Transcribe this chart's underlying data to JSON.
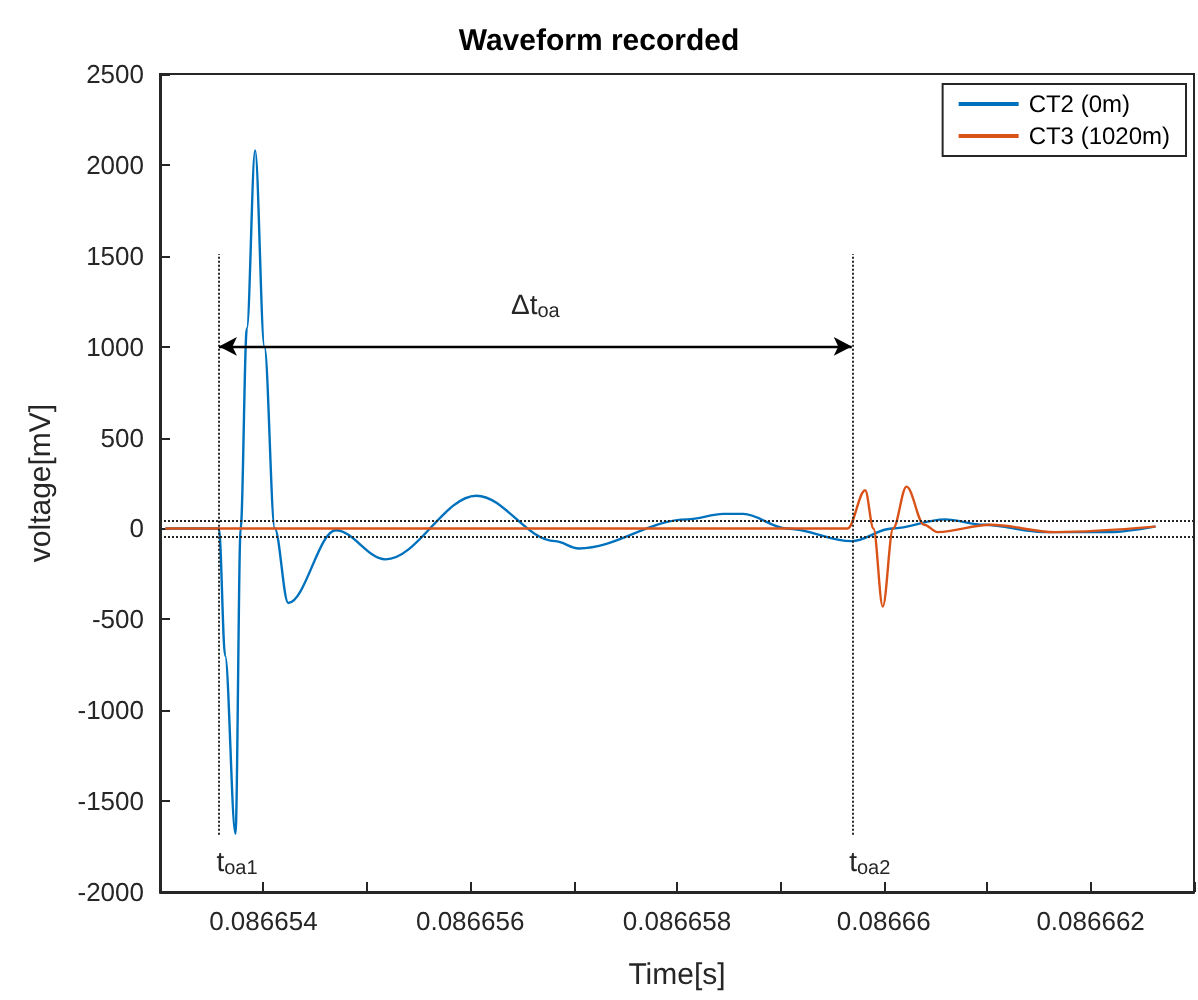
{
  "chart_data": {
    "type": "line",
    "title": "Waveform recorded",
    "xlabel": "Time[s]",
    "ylabel": "voltage[mV]",
    "xlim": [
      0.086653,
      0.086663
    ],
    "xticks": [
      {
        "value": 0.086653,
        "label": null
      },
      0.086654,
      {
        "value": 0.086655,
        "label": null
      },
      0.086656,
      {
        "value": 0.086657,
        "label": null
      },
      0.086658,
      {
        "value": 0.086659,
        "label": null
      },
      {
        "value": 0.08666,
        "label": "0.08666"
      },
      {
        "value": 0.086661,
        "label": null
      },
      0.086662,
      {
        "value": 0.086663,
        "label": null
      }
    ],
    "ylim": [
      -2000,
      2500
    ],
    "yticks": [
      -2000,
      -1500,
      -1000,
      -500,
      0,
      500,
      1000,
      1500,
      2000,
      2500
    ],
    "grid": false,
    "legend": "top right",
    "marker": "none",
    "line_style": "solid",
    "series": [
      {
        "name": "CT2 (0m)",
        "color": "#0072bd",
        "x": [
          0.08665306,
          0.08665357,
          0.08665363,
          0.08665373,
          0.08665378,
          0.08665384,
          0.08665392,
          0.08665401,
          0.08665411,
          0.08665424,
          0.0866547,
          0.08665518,
          0.08665606,
          0.08665682,
          0.08665705,
          0.0866581,
          0.08665845,
          0.08665864,
          0.08665906,
          0.08665969,
          0.08666008,
          0.08666059,
          0.08666097,
          0.08666154,
          0.08666218,
          0.08666262
        ],
        "values": [
          0,
          0,
          -700,
          -1680,
          0,
          1100,
          2080,
          1000,
          0,
          -410,
          -10,
          -170,
          180,
          -70,
          -110,
          50,
          80,
          80,
          0,
          -70,
          0,
          50,
          20,
          -20,
          -20,
          10
        ]
      },
      {
        "name": "CT3 (1020m)",
        "color": "#d95319",
        "x": [
          0.08665306,
          0.08665965,
          0.08665982,
          0.0866599,
          0.08665999,
          0.08666009,
          0.08666022,
          0.08666039,
          0.08666052,
          0.08666103,
          0.08666166,
          0.08666262
        ],
        "values": [
          0,
          0,
          210,
          0,
          -430,
          0,
          230,
          20,
          -20,
          20,
          -20,
          10
        ]
      }
    ],
    "ref_lines": [
      {
        "axis": "x",
        "value": 0.08665357,
        "label": "t$_{oa1}$",
        "color": "#262626",
        "line_style": "dotted"
      },
      {
        "axis": "x",
        "value": 0.08665969,
        "label": "t$_{oa2}$",
        "color": "#262626",
        "line_style": "dotted"
      },
      {
        "axis": "y",
        "value": 40,
        "color": "#262626",
        "line_style": "dotted"
      },
      {
        "axis": "y",
        "value": -40,
        "color": "#262626",
        "line_style": "dotted"
      }
    ],
    "annotations": [
      "Δt$_{oa}$"
    ]
  }
}
